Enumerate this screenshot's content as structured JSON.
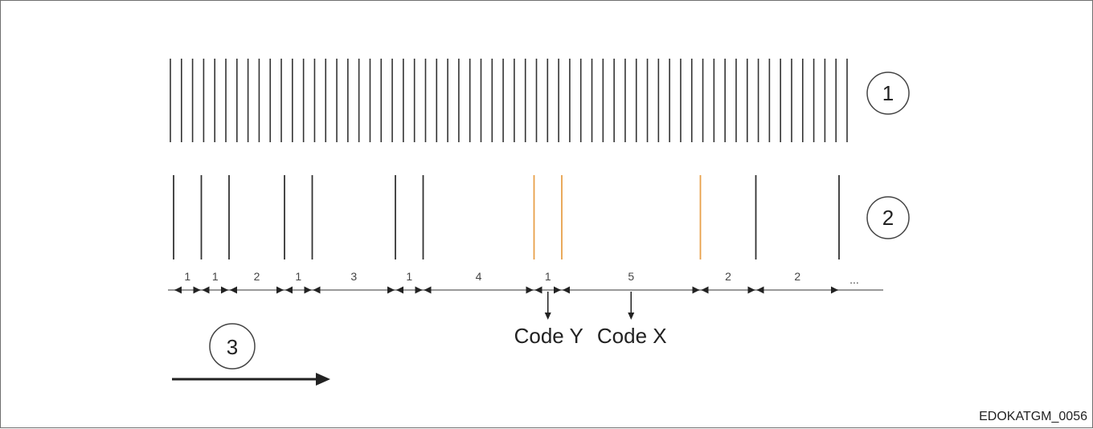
{
  "figure_id": "EDOKATGM_0056",
  "callouts": [
    "1",
    "2",
    "3"
  ],
  "clock": {
    "bar_count": 62
  },
  "signal": {
    "bar_units": [
      0,
      1,
      2,
      4,
      5,
      8,
      9,
      13,
      14,
      19,
      21,
      24
    ],
    "highlighted_bar_indices": [
      7,
      8,
      9
    ],
    "normal_color": "#333333",
    "highlight_color": "#e8a04a"
  },
  "segments": {
    "labels": [
      "1",
      "1",
      "2",
      "1",
      "3",
      "1",
      "4",
      "1",
      "5",
      "2",
      "2"
    ],
    "continuation": "..."
  },
  "codes": [
    {
      "label": "Code Y",
      "segment_index": 7
    },
    {
      "label": "Code X",
      "segment_index": 8
    }
  ]
}
